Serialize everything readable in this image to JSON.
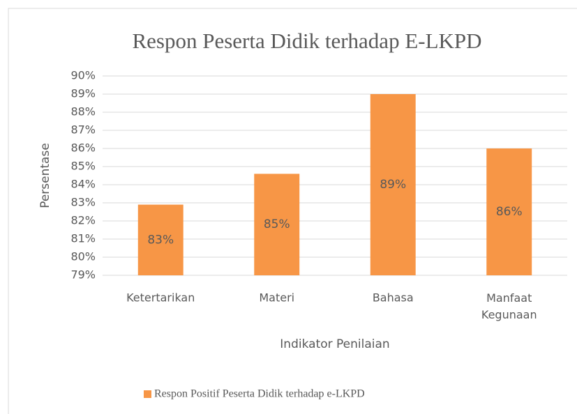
{
  "chart_data": {
    "type": "bar",
    "title": "Respon Peserta Didik terhadap E-LKPD",
    "y_label": "Persentase",
    "x_label": "Indikator Penilaian",
    "categories": [
      "Ketertarikan",
      "Materi",
      "Bahasa",
      "Manfaat Kegunaan"
    ],
    "series": [
      {
        "name": "Respon Positif Peserta Didik terhadap e-LKPD",
        "color": "#f79646",
        "values": [
          82.9,
          84.6,
          89.0,
          86.0
        ],
        "value_labels": [
          "83%",
          "85%",
          "89%",
          "86%"
        ]
      }
    ],
    "ylim": [
      79,
      90
    ],
    "yticks": [
      {
        "value": 79,
        "label": "79%"
      },
      {
        "value": 80,
        "label": "80%"
      },
      {
        "value": 81,
        "label": "81%"
      },
      {
        "value": 82,
        "label": "82%"
      },
      {
        "value": 83,
        "label": "83%"
      },
      {
        "value": 84,
        "label": "84%"
      },
      {
        "value": 85,
        "label": "85%"
      },
      {
        "value": 86,
        "label": "86%"
      },
      {
        "value": 87,
        "label": "87%"
      },
      {
        "value": 88,
        "label": "88%"
      },
      {
        "value": 89,
        "label": "89%"
      },
      {
        "value": 90,
        "label": "90%"
      }
    ],
    "grid": true,
    "legend": "bottom"
  }
}
